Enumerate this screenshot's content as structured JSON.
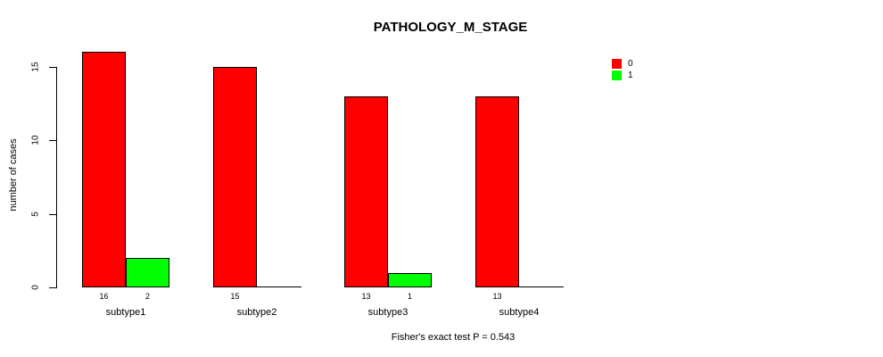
{
  "chart_data": {
    "type": "bar",
    "title": "PATHOLOGY_M_STAGE",
    "ylabel": "number of cases",
    "xlabel": "",
    "footnote": "Fisher's exact test P = 0.543",
    "categories": [
      "subtype1",
      "subtype2",
      "subtype3",
      "subtype4"
    ],
    "series": [
      {
        "name": "0",
        "color": "#ff0000",
        "values": [
          16,
          15,
          13,
          13
        ]
      },
      {
        "name": "1",
        "color": "#00ff00",
        "values": [
          2,
          0,
          1,
          0
        ]
      }
    ],
    "bar_value_labels": [
      [
        "16",
        "2"
      ],
      [
        "15",
        ""
      ],
      [
        "13",
        "1"
      ],
      [
        "13",
        ""
      ]
    ],
    "yticks": [
      0,
      5,
      10,
      15
    ],
    "ylim": [
      0,
      16.5
    ],
    "grid": false,
    "legend_position": "top-right",
    "background_color": "#ffffff",
    "axis_color": "#000000"
  }
}
